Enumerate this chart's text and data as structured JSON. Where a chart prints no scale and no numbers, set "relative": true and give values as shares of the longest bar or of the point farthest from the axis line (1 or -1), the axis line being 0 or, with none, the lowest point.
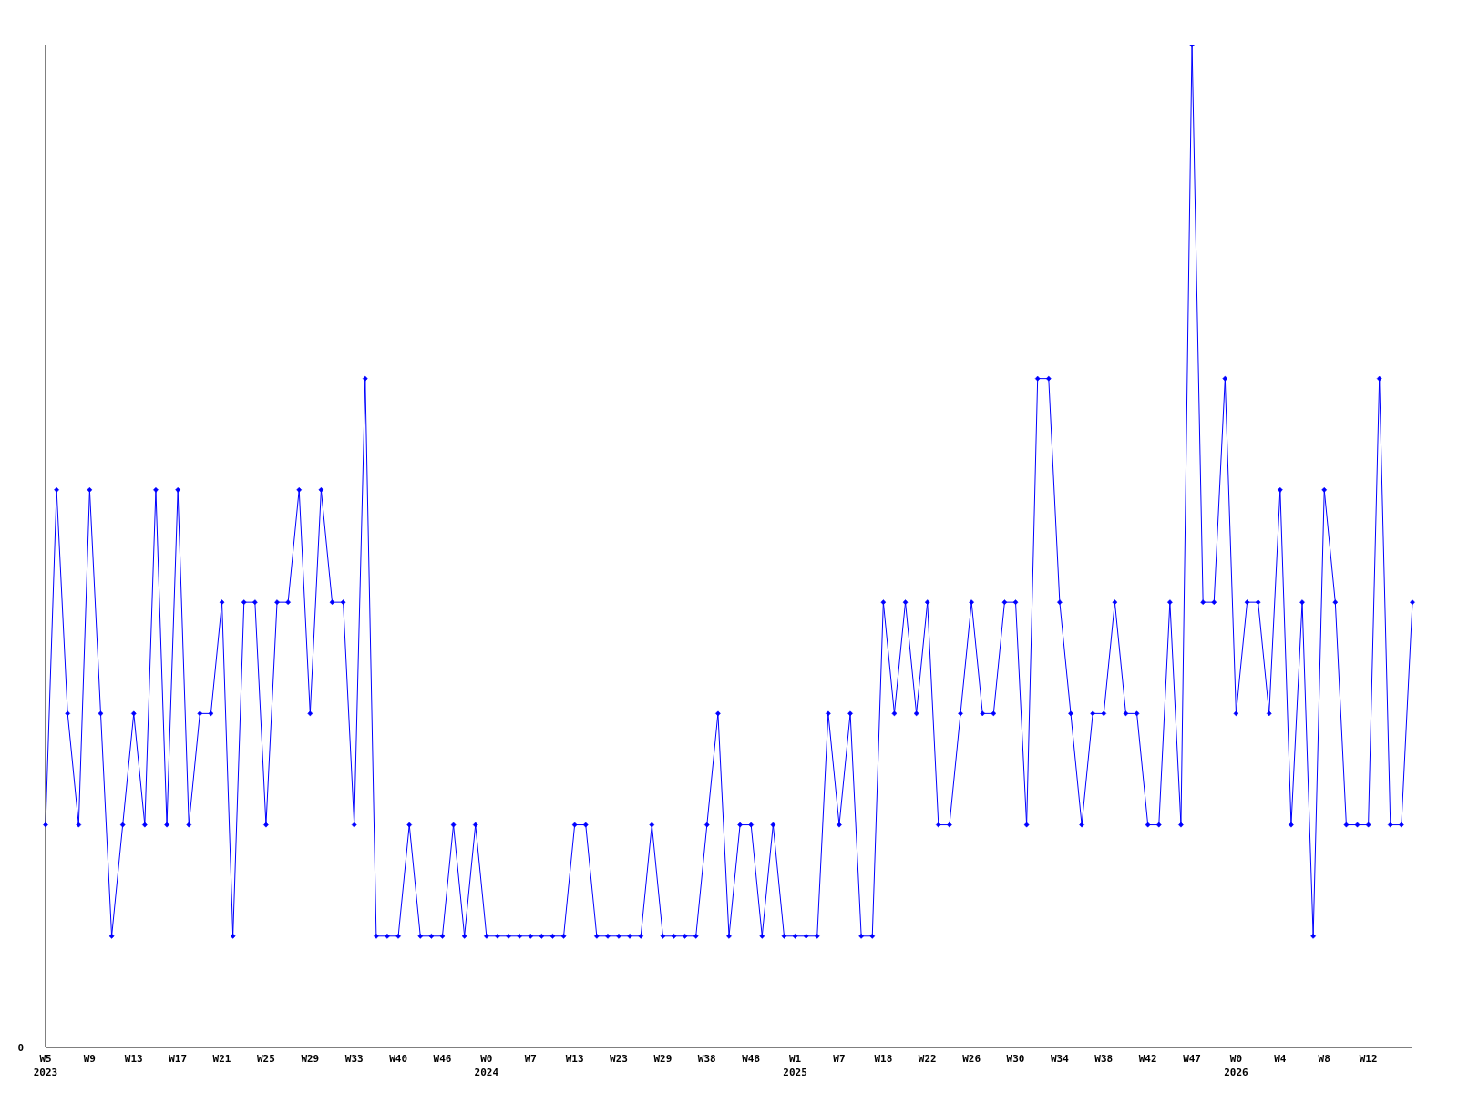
{
  "chart_data": {
    "type": "line",
    "relative": true,
    "annotations": [
      "0"
    ],
    "marker": "diamond",
    "line_style": "solid",
    "color": "#0000ff",
    "categories": [
      "W5\n2023",
      null,
      null,
      null,
      "W9",
      null,
      null,
      null,
      "W13",
      null,
      null,
      null,
      "W17",
      null,
      null,
      null,
      "W21",
      null,
      null,
      null,
      "W25",
      null,
      null,
      null,
      "W29",
      null,
      null,
      null,
      "W33",
      null,
      null,
      null,
      "W40",
      null,
      null,
      null,
      "W46",
      null,
      null,
      null,
      "W0\n2024",
      null,
      null,
      null,
      "W7",
      null,
      null,
      null,
      "W13",
      null,
      null,
      null,
      "W23",
      null,
      null,
      null,
      "W29",
      null,
      null,
      null,
      "W38",
      null,
      null,
      null,
      "W48",
      null,
      null,
      null,
      "W1\n2025",
      null,
      null,
      null,
      "W7",
      null,
      null,
      null,
      "W18",
      null,
      null,
      null,
      "W22",
      null,
      null,
      null,
      "W26",
      null,
      null,
      null,
      "W30",
      null,
      null,
      null,
      "W34",
      null,
      null,
      null,
      "W38",
      null,
      null,
      null,
      "W42",
      null,
      null,
      null,
      "W47",
      null,
      null,
      null,
      "W0\n2026",
      null,
      null,
      null,
      "W4",
      null,
      null,
      null,
      "W8",
      null,
      null,
      null,
      "W12",
      null,
      null,
      null,
      null
    ],
    "values": [
      0.222,
      0.556,
      0.333,
      0.222,
      0.556,
      0.333,
      0.111,
      0.222,
      0.333,
      0.222,
      0.556,
      0.222,
      0.556,
      0.222,
      0.333,
      0.333,
      0.444,
      0.111,
      0.444,
      0.444,
      0.222,
      0.444,
      0.444,
      0.556,
      0.333,
      0.556,
      0.444,
      0.444,
      0.222,
      0.667,
      0.111,
      0.111,
      0.111,
      0.222,
      0.111,
      0.111,
      0.111,
      0.222,
      0.111,
      0.222,
      0.111,
      0.111,
      0.111,
      0.111,
      0.111,
      0.111,
      0.111,
      0.111,
      0.222,
      0.222,
      0.111,
      0.111,
      0.111,
      0.111,
      0.111,
      0.222,
      0.111,
      0.111,
      0.111,
      0.111,
      0.222,
      0.333,
      0.111,
      0.222,
      0.222,
      0.111,
      0.222,
      0.111,
      0.111,
      0.111,
      0.111,
      0.333,
      0.222,
      0.333,
      0.111,
      0.111,
      0.444,
      0.333,
      0.444,
      0.333,
      0.444,
      0.222,
      0.222,
      0.333,
      0.444,
      0.333,
      0.333,
      0.444,
      0.444,
      0.222,
      0.667,
      0.667,
      0.444,
      0.333,
      0.222,
      0.333,
      0.333,
      0.444,
      0.333,
      0.333,
      0.222,
      0.222,
      0.444,
      0.222,
      1,
      0.444,
      0.444,
      0.667,
      0.333,
      0.444,
      0.444,
      0.333,
      0.556,
      0.222,
      0.444,
      0.111,
      0.556,
      0.444,
      0.222,
      0.222,
      0.222,
      0.667,
      0.222,
      0.222,
      0.444
    ]
  }
}
